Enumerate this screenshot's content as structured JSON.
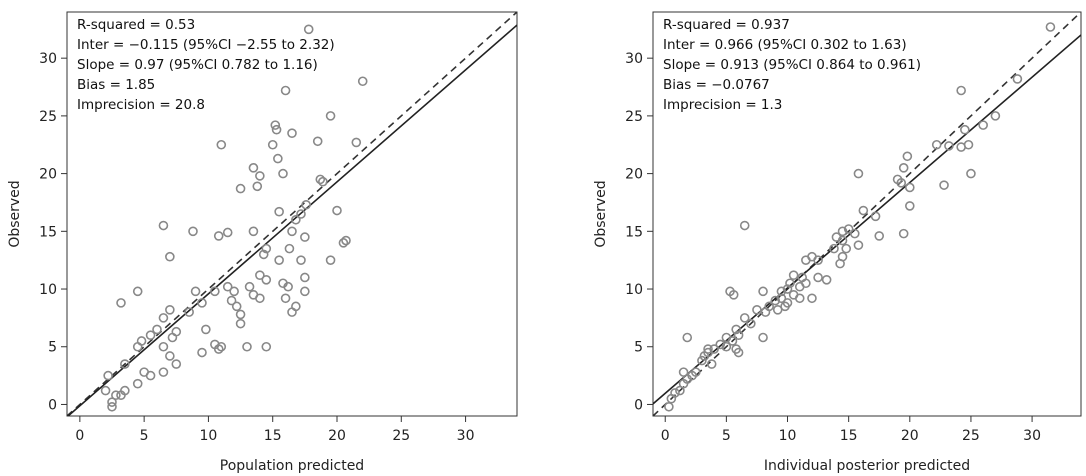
{
  "chart_data": [
    {
      "type": "scatter",
      "xlabel": "Population predicted",
      "ylabel": "Observed",
      "xlim": [
        -1,
        34
      ],
      "ylim": [
        -1,
        34
      ],
      "xticks": [
        "0",
        "5",
        "10",
        "15",
        "20",
        "25",
        "30"
      ],
      "yticks": [
        "0",
        "5",
        "10",
        "15",
        "20",
        "25",
        "30"
      ],
      "stats": [
        "R-squared = 0.53",
        "Inter = −0.115 (95%CI −2.55 to 2.32)",
        "Slope = 0.97 (95%CI 0.782 to 1.16)",
        "Bias = 1.85",
        "Imprecision = 20.8"
      ],
      "identity_line": {
        "style": "dashed",
        "intercept": 0,
        "slope": 1
      },
      "regression_line": {
        "style": "solid",
        "intercept": -0.115,
        "slope": 0.97
      },
      "marker_color": "#888888",
      "points": [
        [
          17.8,
          32.5
        ],
        [
          22.0,
          28.0
        ],
        [
          16.0,
          27.2
        ],
        [
          19.5,
          25.0
        ],
        [
          15.2,
          24.2
        ],
        [
          15.3,
          23.8
        ],
        [
          16.5,
          23.5
        ],
        [
          11.0,
          22.5
        ],
        [
          18.5,
          22.8
        ],
        [
          15.0,
          22.5
        ],
        [
          21.5,
          22.7
        ],
        [
          15.4,
          21.3
        ],
        [
          13.5,
          20.5
        ],
        [
          14.0,
          19.8
        ],
        [
          12.5,
          18.7
        ],
        [
          13.8,
          18.9
        ],
        [
          18.7,
          19.5
        ],
        [
          18.9,
          19.3
        ],
        [
          15.8,
          20.0
        ],
        [
          17.6,
          17.3
        ],
        [
          20.0,
          16.8
        ],
        [
          15.5,
          16.7
        ],
        [
          17.2,
          16.5
        ],
        [
          16.8,
          16.0
        ],
        [
          6.5,
          15.5
        ],
        [
          10.8,
          14.6
        ],
        [
          11.5,
          14.9
        ],
        [
          13.5,
          15.0
        ],
        [
          16.5,
          15.0
        ],
        [
          17.5,
          14.5
        ],
        [
          8.8,
          15.0
        ],
        [
          20.5,
          14.0
        ],
        [
          20.7,
          14.2
        ],
        [
          14.5,
          13.5
        ],
        [
          14.3,
          13.0
        ],
        [
          16.3,
          13.5
        ],
        [
          17.2,
          12.5
        ],
        [
          7.0,
          12.8
        ],
        [
          19.5,
          12.5
        ],
        [
          15.5,
          12.5
        ],
        [
          14.0,
          11.2
        ],
        [
          14.5,
          10.8
        ],
        [
          17.5,
          11.0
        ],
        [
          13.2,
          10.2
        ],
        [
          15.8,
          10.5
        ],
        [
          16.2,
          10.2
        ],
        [
          10.5,
          9.8
        ],
        [
          11.5,
          10.2
        ],
        [
          12.0,
          9.8
        ],
        [
          13.5,
          9.5
        ],
        [
          14.0,
          9.2
        ],
        [
          9.0,
          9.8
        ],
        [
          4.5,
          9.8
        ],
        [
          3.2,
          8.8
        ],
        [
          16.0,
          9.2
        ],
        [
          17.5,
          9.8
        ],
        [
          11.8,
          9.0
        ],
        [
          12.2,
          8.5
        ],
        [
          12.5,
          7.8
        ],
        [
          16.8,
          8.5
        ],
        [
          16.5,
          8.0
        ],
        [
          7.0,
          8.2
        ],
        [
          8.5,
          8.0
        ],
        [
          9.5,
          8.8
        ],
        [
          6.5,
          7.5
        ],
        [
          6.0,
          6.5
        ],
        [
          7.5,
          6.3
        ],
        [
          12.5,
          7.0
        ],
        [
          9.8,
          6.5
        ],
        [
          5.5,
          6.0
        ],
        [
          7.2,
          5.8
        ],
        [
          4.8,
          5.5
        ],
        [
          4.5,
          5.0
        ],
        [
          6.5,
          5.0
        ],
        [
          9.5,
          4.5
        ],
        [
          10.5,
          5.2
        ],
        [
          11.0,
          5.0
        ],
        [
          10.8,
          4.8
        ],
        [
          13.0,
          5.0
        ],
        [
          14.5,
          5.0
        ],
        [
          7.0,
          4.2
        ],
        [
          7.5,
          3.5
        ],
        [
          3.5,
          3.5
        ],
        [
          5.0,
          2.8
        ],
        [
          6.5,
          2.8
        ],
        [
          5.5,
          2.5
        ],
        [
          4.5,
          1.8
        ],
        [
          2.2,
          2.5
        ],
        [
          3.5,
          1.2
        ],
        [
          2.0,
          1.2
        ],
        [
          2.8,
          0.8
        ],
        [
          3.2,
          0.8
        ],
        [
          2.5,
          0.2
        ],
        [
          2.5,
          -0.2
        ]
      ]
    },
    {
      "type": "scatter",
      "xlabel": "Individual posterior predicted",
      "ylabel": "Observed",
      "xlim": [
        -1,
        34
      ],
      "ylim": [
        -1,
        34
      ],
      "xticks": [
        "0",
        "5",
        "10",
        "15",
        "20",
        "25",
        "30"
      ],
      "yticks": [
        "0",
        "5",
        "10",
        "15",
        "20",
        "25",
        "30"
      ],
      "stats": [
        "R-squared = 0.937",
        "Inter = 0.966 (95%CI 0.302 to 1.63)",
        "Slope = 0.913 (95%CI 0.864 to 0.961)",
        "Bias = −0.0767",
        "Imprecision = 1.3"
      ],
      "identity_line": {
        "style": "dashed",
        "intercept": 0,
        "slope": 1
      },
      "regression_line": {
        "style": "solid",
        "intercept": 0.966,
        "slope": 0.913
      },
      "marker_color": "#888888",
      "points": [
        [
          31.5,
          32.7
        ],
        [
          28.8,
          28.2
        ],
        [
          24.2,
          27.2
        ],
        [
          27.0,
          25.0
        ],
        [
          26.0,
          24.2
        ],
        [
          24.5,
          23.8
        ],
        [
          24.8,
          22.5
        ],
        [
          24.2,
          22.3
        ],
        [
          23.2,
          22.4
        ],
        [
          22.2,
          22.5
        ],
        [
          19.8,
          21.5
        ],
        [
          19.5,
          20.5
        ],
        [
          15.8,
          20.0
        ],
        [
          25.0,
          20.0
        ],
        [
          19.0,
          19.5
        ],
        [
          19.3,
          19.2
        ],
        [
          20.0,
          18.8
        ],
        [
          22.8,
          19.0
        ],
        [
          16.2,
          16.8
        ],
        [
          17.2,
          16.3
        ],
        [
          20.0,
          17.2
        ],
        [
          6.5,
          15.5
        ],
        [
          14.5,
          15.0
        ],
        [
          15.0,
          15.2
        ],
        [
          15.5,
          14.8
        ],
        [
          14.0,
          14.5
        ],
        [
          14.5,
          14.2
        ],
        [
          13.8,
          13.5
        ],
        [
          14.8,
          13.5
        ],
        [
          15.8,
          13.8
        ],
        [
          17.5,
          14.6
        ],
        [
          19.5,
          14.8
        ],
        [
          14.5,
          12.8
        ],
        [
          14.3,
          12.2
        ],
        [
          11.5,
          12.5
        ],
        [
          12.0,
          12.8
        ],
        [
          12.5,
          12.5
        ],
        [
          10.5,
          11.2
        ],
        [
          11.2,
          11.0
        ],
        [
          12.5,
          11.0
        ],
        [
          13.2,
          10.8
        ],
        [
          10.2,
          10.5
        ],
        [
          11.0,
          10.2
        ],
        [
          11.5,
          10.5
        ],
        [
          10.0,
          10.0
        ],
        [
          9.5,
          9.8
        ],
        [
          10.5,
          9.5
        ],
        [
          8.0,
          9.8
        ],
        [
          5.3,
          9.8
        ],
        [
          5.6,
          9.5
        ],
        [
          9.0,
          9.0
        ],
        [
          9.5,
          9.2
        ],
        [
          10.0,
          8.8
        ],
        [
          11.0,
          9.2
        ],
        [
          12.0,
          9.2
        ],
        [
          8.5,
          8.5
        ],
        [
          9.2,
          8.2
        ],
        [
          9.8,
          8.5
        ],
        [
          7.5,
          8.2
        ],
        [
          8.2,
          8.0
        ],
        [
          6.5,
          7.5
        ],
        [
          7.0,
          7.0
        ],
        [
          5.8,
          6.5
        ],
        [
          6.0,
          6.0
        ],
        [
          8.0,
          5.8
        ],
        [
          5.0,
          5.8
        ],
        [
          5.5,
          5.5
        ],
        [
          4.5,
          5.2
        ],
        [
          5.0,
          5.0
        ],
        [
          5.8,
          4.8
        ],
        [
          6.0,
          4.5
        ],
        [
          4.0,
          4.8
        ],
        [
          3.5,
          4.8
        ],
        [
          3.5,
          4.5
        ],
        [
          3.2,
          4.2
        ],
        [
          3.8,
          3.5
        ],
        [
          1.8,
          5.8
        ],
        [
          3.0,
          3.8
        ],
        [
          2.5,
          2.8
        ],
        [
          1.5,
          2.8
        ],
        [
          2.2,
          2.5
        ],
        [
          1.8,
          2.2
        ],
        [
          1.5,
          1.8
        ],
        [
          1.2,
          1.2
        ],
        [
          0.8,
          1.0
        ],
        [
          0.5,
          0.5
        ],
        [
          0.3,
          -0.2
        ]
      ]
    }
  ]
}
